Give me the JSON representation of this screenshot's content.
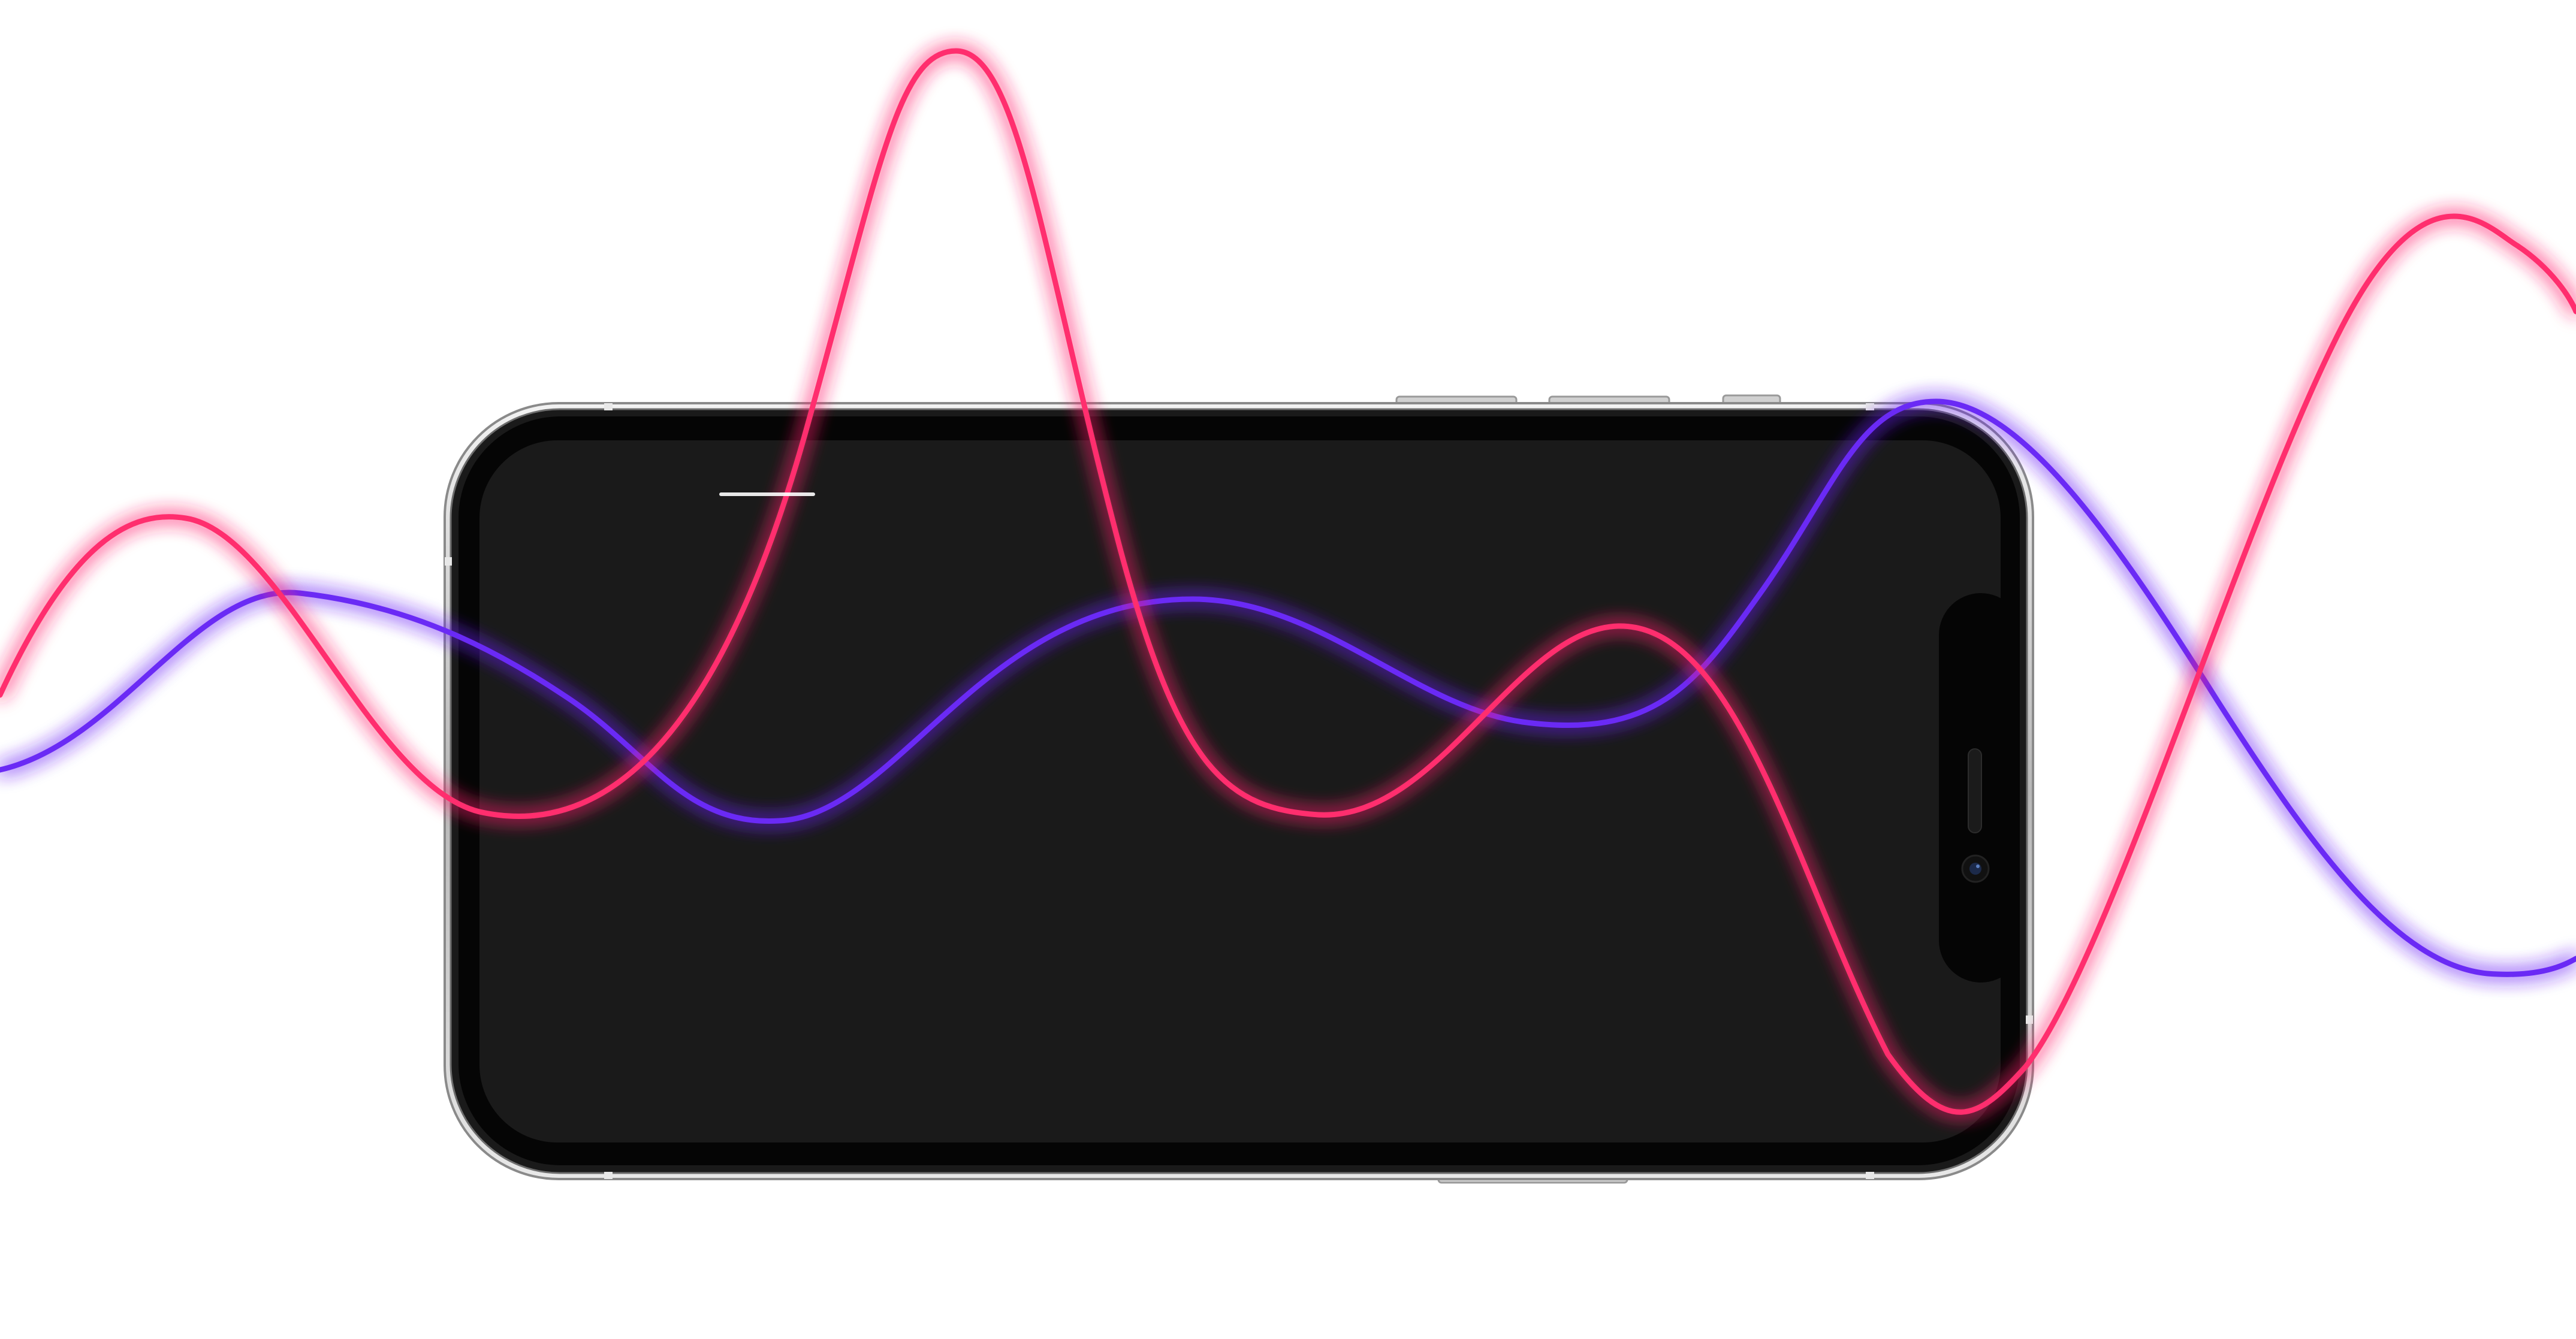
{
  "scene": {
    "background_color": "#ffffff",
    "phone": {
      "orientation": "landscape",
      "frame_color": "#c9c9c9",
      "bezel_color": "#050505",
      "screen_color": "#ffffff",
      "has_notch": true,
      "notch_side": "right",
      "button_count": 4
    },
    "waves": [
      {
        "name": "pink-wave",
        "color": "#ff2e6e",
        "glow": true
      },
      {
        "name": "purple-wave",
        "color": "#6a2cf5",
        "glow": true
      }
    ],
    "icons": [
      "front-camera-icon",
      "speaker-grille-icon"
    ]
  }
}
